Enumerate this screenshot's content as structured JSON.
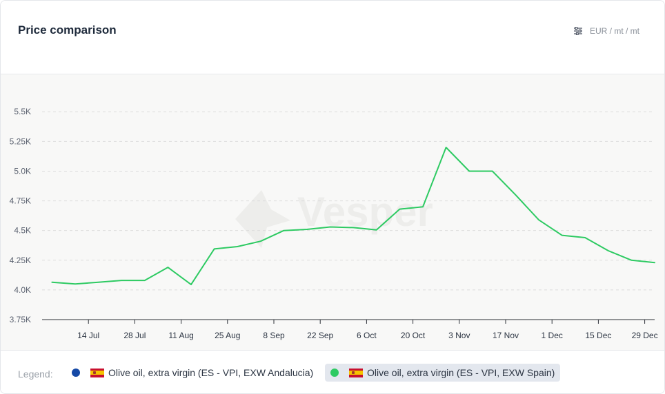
{
  "header": {
    "title": "Price comparison",
    "units": "EUR / mt / mt",
    "units_icon": "sliders-icon"
  },
  "watermark": "Vesper",
  "legend": {
    "label": "Legend:",
    "items": [
      {
        "name": "Olive oil, extra virgin (ES - VPI, EXW Andalucia)",
        "color": "#1549a6",
        "flag": "spain-flag",
        "active": false
      },
      {
        "name": "Olive oil, extra virgin (ES - VPI, EXW Spain)",
        "color": "#2dca62",
        "flag": "spain-flag",
        "active": true
      }
    ]
  },
  "chart_data": {
    "type": "line",
    "title": "Price comparison",
    "xlabel": "",
    "ylabel": "",
    "ylim": [
      3750,
      5600
    ],
    "yticks": [
      3750,
      4000,
      4250,
      4500,
      4750,
      5000,
      5250,
      5500
    ],
    "ytick_labels": [
      "3.75K",
      "4.0K",
      "4.25K",
      "4.5K",
      "4.75K",
      "5.0K",
      "5.25K",
      "5.5K"
    ],
    "xlim": [
      "2023-06-30",
      "2024-01-01"
    ],
    "xticks": [
      "2023-07-14",
      "2023-07-28",
      "2023-08-11",
      "2023-08-25",
      "2023-09-08",
      "2023-09-22",
      "2023-10-06",
      "2023-10-20",
      "2023-11-03",
      "2023-11-17",
      "2023-12-01",
      "2023-12-15",
      "2023-12-29"
    ],
    "xtick_labels": [
      "14 Jul",
      "28 Jul",
      "11 Aug",
      "25 Aug",
      "8 Sep",
      "22 Sep",
      "6 Oct",
      "20 Oct",
      "3 Nov",
      "17 Nov",
      "1 Dec",
      "15 Dec",
      "29 Dec"
    ],
    "grid": true,
    "series": [
      {
        "name": "Olive oil, extra virgin (ES - VPI, EXW Spain)",
        "color": "#2dca62",
        "x": [
          "2023-07-03",
          "2023-07-10",
          "2023-07-17",
          "2023-07-24",
          "2023-07-31",
          "2023-08-07",
          "2023-08-14",
          "2023-08-21",
          "2023-08-28",
          "2023-09-04",
          "2023-09-11",
          "2023-09-18",
          "2023-09-25",
          "2023-10-02",
          "2023-10-09",
          "2023-10-16",
          "2023-10-23",
          "2023-10-30",
          "2023-11-06",
          "2023-11-13",
          "2023-11-20",
          "2023-11-27",
          "2023-12-04",
          "2023-12-11",
          "2023-12-18",
          "2023-12-25",
          "2024-01-01"
        ],
        "y": [
          4065,
          4050,
          4065,
          4080,
          4080,
          4190,
          4045,
          4345,
          4365,
          4410,
          4500,
          4510,
          4530,
          4525,
          4505,
          4680,
          4700,
          5200,
          5000,
          5000,
          4800,
          4590,
          4460,
          4440,
          4330,
          4250,
          4230
        ]
      }
    ]
  }
}
